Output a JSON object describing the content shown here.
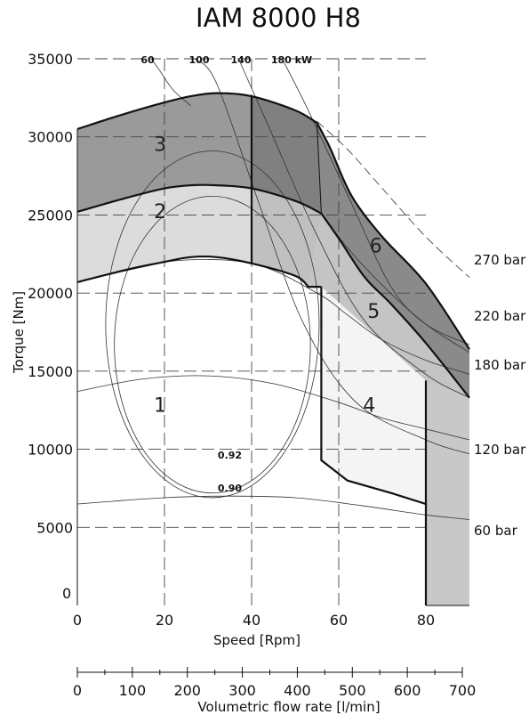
{
  "chart_data": {
    "type": "area",
    "title": "IAM 8000 H8",
    "xlabel": "Speed [Rpm]",
    "ylabel": "Torque [Nm]",
    "x2label": "Volumetric flow rate [l/min]",
    "xlim": [
      0,
      90
    ],
    "ylim": [
      0,
      35000
    ],
    "x2lim": [
      0,
      740
    ],
    "x_ticks": [
      "0",
      "20",
      "40",
      "60",
      "80"
    ],
    "y_ticks": [
      "0",
      "5000",
      "10000",
      "15000",
      "20000",
      "25000",
      "30000",
      "35000"
    ],
    "x2_ticks": [
      "0",
      "100",
      "200",
      "300",
      "400",
      "500",
      "600",
      "700"
    ],
    "grid": true,
    "power_labels": [
      "60",
      "100",
      "140",
      "180 kW"
    ],
    "pressure_labels": [
      "270 bar",
      "220 bar",
      "180 bar",
      "120 bar",
      "60 bar"
    ],
    "efficiency_labels": [
      "0.92",
      "0.90"
    ],
    "region_labels": [
      "1",
      "2",
      "3",
      "4",
      "5",
      "6"
    ],
    "colors": {
      "region_light": "#f4f4f4",
      "region_2": "#dcdcdc",
      "region_3": "#9a9a9a",
      "region_5": "#c4c4c4",
      "region_6": "#8a8a8a",
      "band": "#c8c8c8"
    },
    "boundaries": {
      "region1_top": [
        [
          0,
          20700
        ],
        [
          10,
          21400
        ],
        [
          20,
          22000
        ],
        [
          26,
          22300
        ],
        [
          32,
          22300
        ],
        [
          40,
          21900
        ],
        [
          50,
          21100
        ],
        [
          53,
          20400
        ]
      ],
      "region2_top": [
        [
          0,
          25200
        ],
        [
          10,
          26000
        ],
        [
          20,
          26700
        ],
        [
          26,
          26900
        ],
        [
          32,
          26900
        ],
        [
          40,
          26700
        ],
        [
          50,
          25900
        ],
        [
          56,
          25100
        ]
      ],
      "region3_top": [
        [
          0,
          30500
        ],
        [
          10,
          31400
        ],
        [
          20,
          32200
        ],
        [
          26,
          32600
        ],
        [
          32,
          32800
        ],
        [
          40,
          32600
        ],
        [
          50,
          31700
        ],
        [
          55,
          30900
        ]
      ],
      "region5_top": [
        [
          56,
          25100
        ],
        [
          60,
          23500
        ],
        [
          66,
          21000
        ],
        [
          72,
          19300
        ],
        [
          80,
          16800
        ],
        [
          90,
          13300
        ]
      ],
      "region6_top": [
        [
          55,
          30900
        ],
        [
          58,
          29300
        ],
        [
          63,
          26200
        ],
        [
          70,
          23600
        ],
        [
          80,
          20600
        ],
        [
          90,
          16400
        ]
      ],
      "region4_outline": [
        [
          56,
          20400
        ],
        [
          56,
          9300
        ],
        [
          62,
          8000
        ],
        [
          72,
          7200
        ],
        [
          80,
          6500
        ],
        [
          80,
          14400
        ]
      ]
    },
    "pressure_curves": [
      {
        "label": "270 bar",
        "points": [
          [
            55,
            31000
          ],
          [
            62,
            29200
          ],
          [
            70,
            26700
          ],
          [
            80,
            23600
          ],
          [
            90,
            21000
          ]
        ]
      },
      {
        "label": "220 bar",
        "points": [
          [
            56,
            25100
          ],
          [
            62,
            22900
          ],
          [
            70,
            20500
          ],
          [
            80,
            18000
          ],
          [
            90,
            16200
          ]
        ]
      },
      {
        "label": "180 bar",
        "points": [
          [
            0,
            20700
          ],
          [
            20,
            22000
          ],
          [
            40,
            21900
          ],
          [
            55,
            20000
          ],
          [
            62,
            18600
          ],
          [
            70,
            17000
          ],
          [
            80,
            15700
          ],
          [
            90,
            14800
          ]
        ]
      },
      {
        "label": "120 bar",
        "points": [
          [
            0,
            13700
          ],
          [
            15,
            14500
          ],
          [
            30,
            14700
          ],
          [
            45,
            14200
          ],
          [
            60,
            13000
          ],
          [
            70,
            12000
          ],
          [
            80,
            11300
          ],
          [
            90,
            10600
          ]
        ]
      },
      {
        "label": "60 bar",
        "points": [
          [
            0,
            6500
          ],
          [
            20,
            6900
          ],
          [
            35,
            7000
          ],
          [
            50,
            6900
          ],
          [
            65,
            6400
          ],
          [
            80,
            5800
          ],
          [
            90,
            5500
          ]
        ]
      }
    ],
    "power_curves": [
      {
        "label": "60",
        "points": [
          [
            17,
            35000
          ],
          [
            19,
            34200
          ],
          [
            22,
            33000
          ],
          [
            26,
            32000
          ]
        ]
      },
      {
        "label": "100",
        "points": [
          [
            27,
            35000
          ],
          [
            32,
            33400
          ],
          [
            42,
            25500
          ],
          [
            52,
            18000
          ],
          [
            64,
            13000
          ],
          [
            80,
            10600
          ],
          [
            90,
            9700
          ]
        ]
      },
      {
        "label": "140",
        "points": [
          [
            37,
            35000
          ],
          [
            44,
            30600
          ],
          [
            55,
            23700
          ],
          [
            66,
            18200
          ],
          [
            80,
            14800
          ],
          [
            90,
            13300
          ]
        ]
      },
      {
        "label": "180 kW",
        "points": [
          [
            47,
            35000
          ],
          [
            53,
            31700
          ],
          [
            63,
            25700
          ],
          [
            72,
            20400
          ],
          [
            80,
            18000
          ],
          [
            90,
            16700
          ]
        ]
      }
    ],
    "efficiency_curves": [
      {
        "label": "0.92",
        "cx": 31,
        "cy": 16700,
        "rx": 22.5,
        "ry": 9500
      },
      {
        "label": "0.90",
        "cx": 31,
        "cy": 18000,
        "rx": 24.5,
        "ry": 11100
      }
    ]
  }
}
